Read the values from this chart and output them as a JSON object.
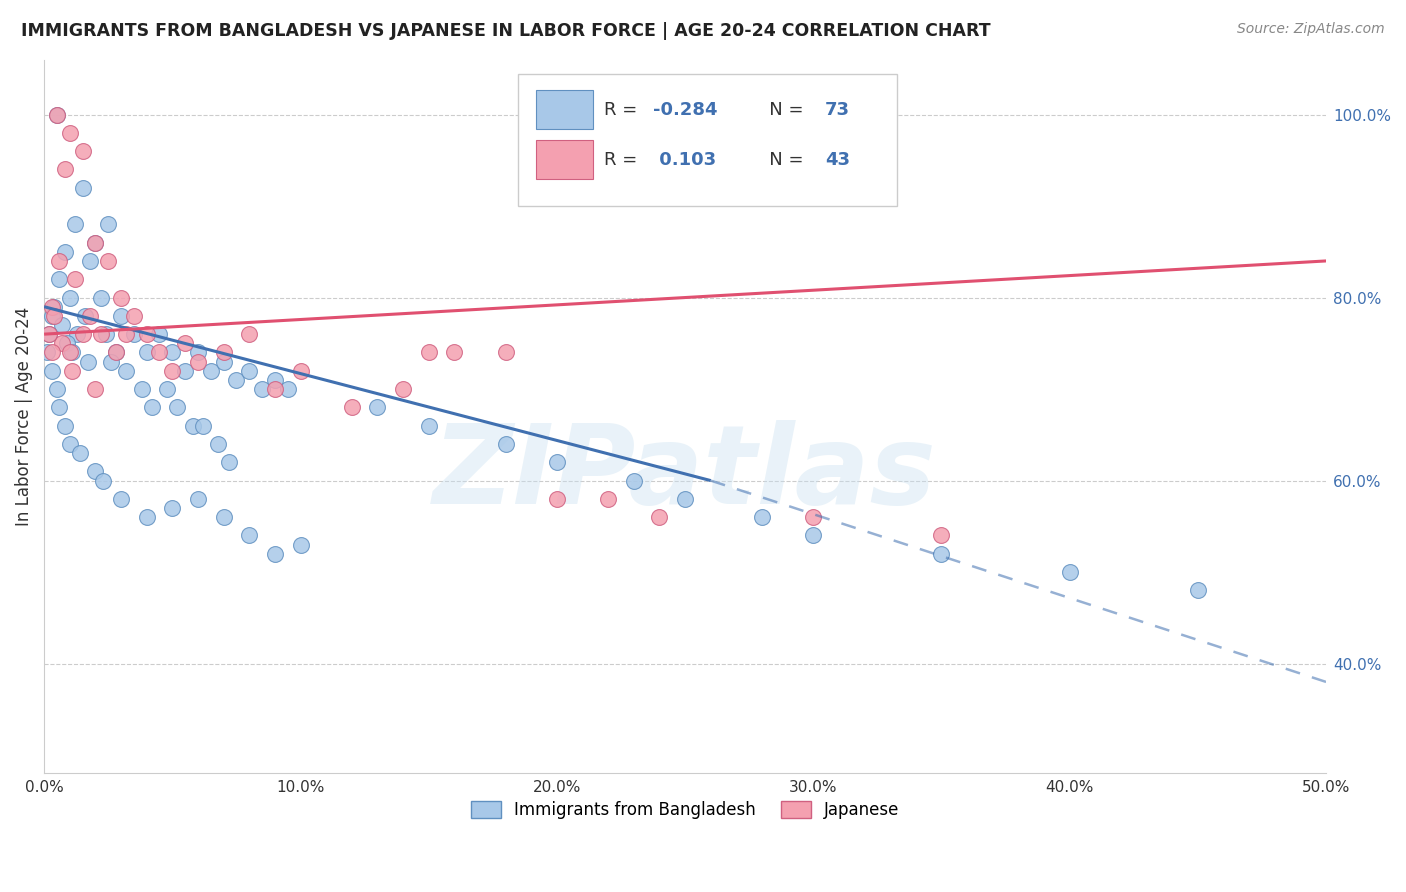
{
  "title": "IMMIGRANTS FROM BANGLADESH VS JAPANESE IN LABOR FORCE | AGE 20-24 CORRELATION CHART",
  "source_text": "Source: ZipAtlas.com",
  "ylabel": "In Labor Force | Age 20-24",
  "xlim": [
    0.0,
    50.0
  ],
  "ylim": [
    28.0,
    106.0
  ],
  "yticks": [
    40.0,
    60.0,
    80.0,
    100.0
  ],
  "xticks": [
    0.0,
    10.0,
    20.0,
    30.0,
    40.0,
    50.0
  ],
  "blue_R": -0.284,
  "blue_N": 73,
  "pink_R": 0.103,
  "pink_N": 43,
  "legend_label_blue": "Immigrants from Bangladesh",
  "legend_label_pink": "Japanese",
  "watermark": "ZIPatlas",
  "blue_color": "#a8c8e8",
  "pink_color": "#f4a0b0",
  "blue_edge_color": "#6090c0",
  "pink_edge_color": "#d06080",
  "blue_line_color": "#4070b0",
  "pink_line_color": "#e05070",
  "blue_scatter": [
    [
      0.5,
      100.0
    ],
    [
      1.5,
      92.0
    ],
    [
      2.5,
      88.0
    ],
    [
      1.8,
      84.0
    ],
    [
      0.8,
      85.0
    ],
    [
      1.2,
      88.0
    ],
    [
      2.0,
      86.0
    ],
    [
      0.6,
      82.0
    ],
    [
      1.0,
      80.0
    ],
    [
      1.6,
      78.0
    ],
    [
      2.2,
      80.0
    ],
    [
      0.4,
      79.0
    ],
    [
      0.3,
      78.0
    ],
    [
      0.7,
      77.0
    ],
    [
      1.3,
      76.0
    ],
    [
      0.9,
      75.0
    ],
    [
      1.1,
      74.0
    ],
    [
      1.7,
      73.0
    ],
    [
      2.4,
      76.0
    ],
    [
      2.8,
      74.0
    ],
    [
      3.0,
      78.0
    ],
    [
      3.5,
      76.0
    ],
    [
      4.0,
      74.0
    ],
    [
      4.5,
      76.0
    ],
    [
      3.2,
      72.0
    ],
    [
      2.6,
      73.0
    ],
    [
      5.0,
      74.0
    ],
    [
      5.5,
      72.0
    ],
    [
      4.8,
      70.0
    ],
    [
      6.0,
      74.0
    ],
    [
      6.5,
      72.0
    ],
    [
      7.0,
      73.0
    ],
    [
      7.5,
      71.0
    ],
    [
      8.0,
      72.0
    ],
    [
      8.5,
      70.0
    ],
    [
      9.0,
      71.0
    ],
    [
      9.5,
      70.0
    ],
    [
      3.8,
      70.0
    ],
    [
      4.2,
      68.0
    ],
    [
      5.2,
      68.0
    ],
    [
      5.8,
      66.0
    ],
    [
      6.2,
      66.0
    ],
    [
      6.8,
      64.0
    ],
    [
      7.2,
      62.0
    ],
    [
      0.2,
      76.0
    ],
    [
      0.1,
      74.0
    ],
    [
      0.3,
      72.0
    ],
    [
      0.5,
      70.0
    ],
    [
      0.6,
      68.0
    ],
    [
      0.8,
      66.0
    ],
    [
      1.0,
      64.0
    ],
    [
      1.4,
      63.0
    ],
    [
      2.0,
      61.0
    ],
    [
      2.3,
      60.0
    ],
    [
      3.0,
      58.0
    ],
    [
      4.0,
      56.0
    ],
    [
      5.0,
      57.0
    ],
    [
      6.0,
      58.0
    ],
    [
      7.0,
      56.0
    ],
    [
      8.0,
      54.0
    ],
    [
      9.0,
      52.0
    ],
    [
      10.0,
      53.0
    ],
    [
      13.0,
      68.0
    ],
    [
      15.0,
      66.0
    ],
    [
      18.0,
      64.0
    ],
    [
      20.0,
      62.0
    ],
    [
      23.0,
      60.0
    ],
    [
      25.0,
      58.0
    ],
    [
      28.0,
      56.0
    ],
    [
      30.0,
      54.0
    ],
    [
      35.0,
      52.0
    ],
    [
      40.0,
      50.0
    ],
    [
      45.0,
      48.0
    ]
  ],
  "pink_scatter": [
    [
      0.5,
      100.0
    ],
    [
      1.0,
      98.0
    ],
    [
      1.5,
      96.0
    ],
    [
      0.8,
      94.0
    ],
    [
      2.0,
      86.0
    ],
    [
      0.6,
      84.0
    ],
    [
      1.2,
      82.0
    ],
    [
      2.5,
      84.0
    ],
    [
      3.0,
      80.0
    ],
    [
      0.3,
      79.0
    ],
    [
      0.4,
      78.0
    ],
    [
      1.8,
      78.0
    ],
    [
      2.2,
      76.0
    ],
    [
      3.5,
      78.0
    ],
    [
      4.0,
      76.0
    ],
    [
      0.7,
      75.0
    ],
    [
      1.0,
      74.0
    ],
    [
      1.5,
      76.0
    ],
    [
      2.8,
      74.0
    ],
    [
      3.2,
      76.0
    ],
    [
      4.5,
      74.0
    ],
    [
      5.0,
      72.0
    ],
    [
      5.5,
      75.0
    ],
    [
      6.0,
      73.0
    ],
    [
      7.0,
      74.0
    ],
    [
      8.0,
      76.0
    ],
    [
      0.2,
      76.0
    ],
    [
      0.3,
      74.0
    ],
    [
      1.1,
      72.0
    ],
    [
      2.0,
      70.0
    ],
    [
      9.0,
      70.0
    ],
    [
      10.0,
      72.0
    ],
    [
      12.0,
      68.0
    ],
    [
      14.0,
      70.0
    ],
    [
      15.0,
      74.0
    ],
    [
      16.0,
      74.0
    ],
    [
      18.0,
      74.0
    ],
    [
      20.0,
      58.0
    ],
    [
      22.0,
      58.0
    ],
    [
      24.0,
      56.0
    ],
    [
      28.0,
      100.0
    ],
    [
      30.0,
      56.0
    ],
    [
      35.0,
      54.0
    ]
  ],
  "blue_line_y0": 79.0,
  "blue_line_y_at_26": 60.0,
  "blue_line_y_at_50": 38.0,
  "blue_solid_x_end": 26.0,
  "pink_line_y0": 76.0,
  "pink_line_y_at_50": 84.0
}
